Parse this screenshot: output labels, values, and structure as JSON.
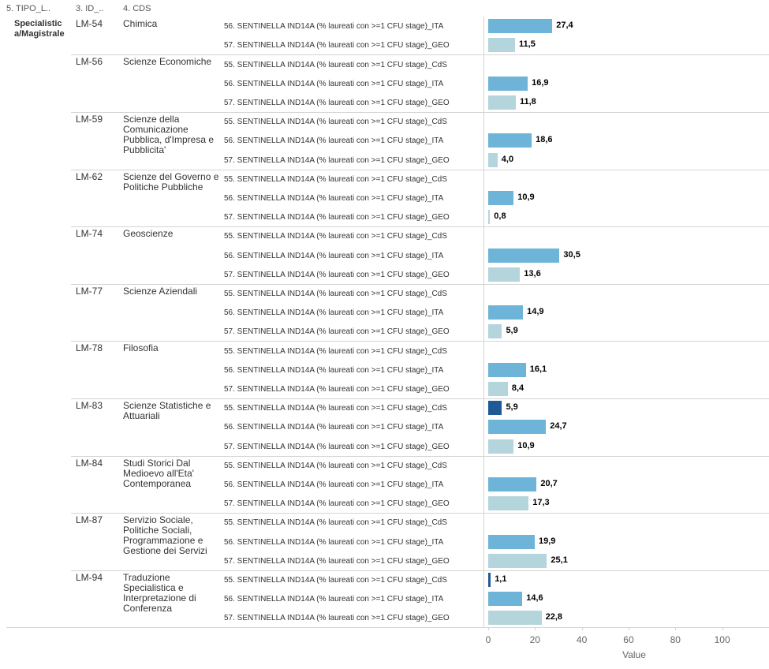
{
  "chart_data": {
    "type": "bar",
    "orientation": "horizontal",
    "column_headers": [
      "5. TIPO_L..",
      "3. ID_..",
      "4. CDS"
    ],
    "tipo": "Specialistica/Magistrale",
    "x_label": "Value",
    "xlim": [
      -2,
      120
    ],
    "xticks": [
      0,
      20,
      40,
      60,
      80,
      100
    ],
    "groups": [
      {
        "id": "LM-54",
        "cds": "Chimica",
        "categories": [
          "56. SENTINELLA IND14A (% laureati con >=1 CFU stage)_ITA",
          "57. SENTINELLA IND14A (% laureati con >=1 CFU stage)_GEO"
        ],
        "values": [
          27.4,
          11.5
        ],
        "value_labels": [
          "27,4",
          "11,5"
        ],
        "colors": [
          "#6db4d8",
          "#b5d5dd"
        ]
      },
      {
        "id": "LM-56",
        "cds": "Scienze Economiche",
        "categories": [
          "55. SENTINELLA IND14A (% laureati con >=1 CFU stage)_CdS",
          "56. SENTINELLA IND14A (% laureati con >=1 CFU stage)_ITA",
          "57. SENTINELLA IND14A (% laureati con >=1 CFU stage)_GEO"
        ],
        "values": [
          null,
          16.9,
          11.8
        ],
        "value_labels": [
          null,
          "16,9",
          "11,8"
        ],
        "colors": [
          "#1f5a96",
          "#6db4d8",
          "#b5d5dd"
        ]
      },
      {
        "id": "LM-59",
        "cds": "Scienze della Comunicazione Pubblica, d'Impresa e Pubblicita'",
        "categories": [
          "55. SENTINELLA IND14A (% laureati con >=1 CFU stage)_CdS",
          "56. SENTINELLA IND14A (% laureati con >=1 CFU stage)_ITA",
          "57. SENTINELLA IND14A (% laureati con >=1 CFU stage)_GEO"
        ],
        "values": [
          null,
          18.6,
          4.0
        ],
        "value_labels": [
          null,
          "18,6",
          "4,0"
        ],
        "colors": [
          "#1f5a96",
          "#6db4d8",
          "#b5d5dd"
        ]
      },
      {
        "id": "LM-62",
        "cds": "Scienze del Governo e Politiche Pubbliche",
        "categories": [
          "55. SENTINELLA IND14A (% laureati con >=1 CFU stage)_CdS",
          "56. SENTINELLA IND14A (% laureati con >=1 CFU stage)_ITA",
          "57. SENTINELLA IND14A (% laureati con >=1 CFU stage)_GEO"
        ],
        "values": [
          null,
          10.9,
          0.8
        ],
        "value_labels": [
          null,
          "10,9",
          "0,8"
        ],
        "colors": [
          "#1f5a96",
          "#6db4d8",
          "#b5d5dd"
        ]
      },
      {
        "id": "LM-74",
        "cds": "Geoscienze",
        "categories": [
          "55. SENTINELLA IND14A (% laureati con >=1 CFU stage)_CdS",
          "56. SENTINELLA IND14A (% laureati con >=1 CFU stage)_ITA",
          "57. SENTINELLA IND14A (% laureati con >=1 CFU stage)_GEO"
        ],
        "values": [
          null,
          30.5,
          13.6
        ],
        "value_labels": [
          null,
          "30,5",
          "13,6"
        ],
        "colors": [
          "#1f5a96",
          "#6db4d8",
          "#b5d5dd"
        ]
      },
      {
        "id": "LM-77",
        "cds": "Scienze Aziendali",
        "categories": [
          "55. SENTINELLA IND14A (% laureati con >=1 CFU stage)_CdS",
          "56. SENTINELLA IND14A (% laureati con >=1 CFU stage)_ITA",
          "57. SENTINELLA IND14A (% laureati con >=1 CFU stage)_GEO"
        ],
        "values": [
          null,
          14.9,
          5.9
        ],
        "value_labels": [
          null,
          "14,9",
          "5,9"
        ],
        "colors": [
          "#1f5a96",
          "#6db4d8",
          "#b5d5dd"
        ]
      },
      {
        "id": "LM-78",
        "cds": "Filosofia",
        "categories": [
          "55. SENTINELLA IND14A (% laureati con >=1 CFU stage)_CdS",
          "56. SENTINELLA IND14A (% laureati con >=1 CFU stage)_ITA",
          "57. SENTINELLA IND14A (% laureati con >=1 CFU stage)_GEO"
        ],
        "values": [
          null,
          16.1,
          8.4
        ],
        "value_labels": [
          null,
          "16,1",
          "8,4"
        ],
        "colors": [
          "#1f5a96",
          "#6db4d8",
          "#b5d5dd"
        ]
      },
      {
        "id": "LM-83",
        "cds": "Scienze Statistiche e Attuariali",
        "categories": [
          "55. SENTINELLA IND14A (% laureati con >=1 CFU stage)_CdS",
          "56. SENTINELLA IND14A (% laureati con >=1 CFU stage)_ITA",
          "57. SENTINELLA IND14A (% laureati con >=1 CFU stage)_GEO"
        ],
        "values": [
          5.9,
          24.7,
          10.9
        ],
        "value_labels": [
          "5,9",
          "24,7",
          "10,9"
        ],
        "colors": [
          "#1f5a96",
          "#6db4d8",
          "#b5d5dd"
        ]
      },
      {
        "id": "LM-84",
        "cds": "Studi Storici Dal Medioevo all'Eta' Contemporanea",
        "categories": [
          "55. SENTINELLA IND14A (% laureati con >=1 CFU stage)_CdS",
          "56. SENTINELLA IND14A (% laureati con >=1 CFU stage)_ITA",
          "57. SENTINELLA IND14A (% laureati con >=1 CFU stage)_GEO"
        ],
        "values": [
          null,
          20.7,
          17.3
        ],
        "value_labels": [
          null,
          "20,7",
          "17,3"
        ],
        "colors": [
          "#1f5a96",
          "#6db4d8",
          "#b5d5dd"
        ]
      },
      {
        "id": "LM-87",
        "cds": "Servizio Sociale, Politiche Sociali, Programmazione e Gestione dei Servizi",
        "categories": [
          "55. SENTINELLA IND14A (% laureati con >=1 CFU stage)_CdS",
          "56. SENTINELLA IND14A (% laureati con >=1 CFU stage)_ITA",
          "57. SENTINELLA IND14A (% laureati con >=1 CFU stage)_GEO"
        ],
        "values": [
          null,
          19.9,
          25.1
        ],
        "value_labels": [
          null,
          "19,9",
          "25,1"
        ],
        "colors": [
          "#1f5a96",
          "#6db4d8",
          "#b5d5dd"
        ]
      },
      {
        "id": "LM-94",
        "cds": "Traduzione Specialistica e Interpretazione di Conferenza",
        "categories": [
          "55. SENTINELLA IND14A (% laureati con >=1 CFU stage)_CdS",
          "56. SENTINELLA IND14A (% laureati con >=1 CFU stage)_ITA",
          "57. SENTINELLA IND14A (% laureati con >=1 CFU stage)_GEO"
        ],
        "values": [
          1.1,
          14.6,
          22.8
        ],
        "value_labels": [
          "1,1",
          "14,6",
          "22,8"
        ],
        "colors": [
          "#1f5a96",
          "#6db4d8",
          "#b5d5dd"
        ]
      }
    ]
  }
}
